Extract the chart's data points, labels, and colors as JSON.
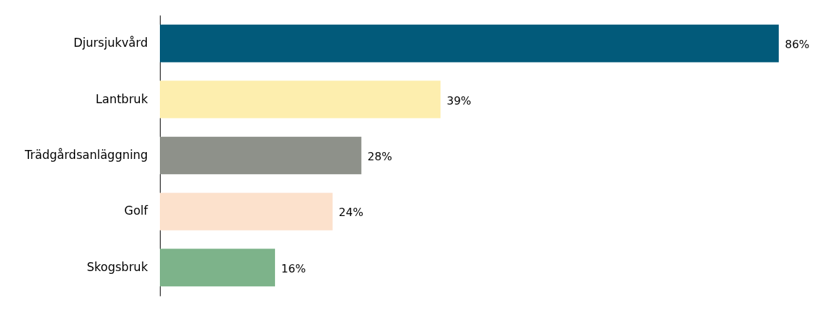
{
  "chart_data": {
    "type": "bar",
    "orientation": "horizontal",
    "categories": [
      "Djursjukvård",
      "Lantbruk",
      "Trädgårdsanläggning",
      "Golf",
      "Skogsbruk"
    ],
    "values": [
      86,
      39,
      28,
      24,
      16
    ],
    "colors": [
      "#025a7a",
      "#fdeeae",
      "#8e918a",
      "#fce1cc",
      "#7db38a"
    ],
    "value_labels": [
      "86%",
      "39%",
      "28%",
      "24%",
      "16%"
    ]
  }
}
